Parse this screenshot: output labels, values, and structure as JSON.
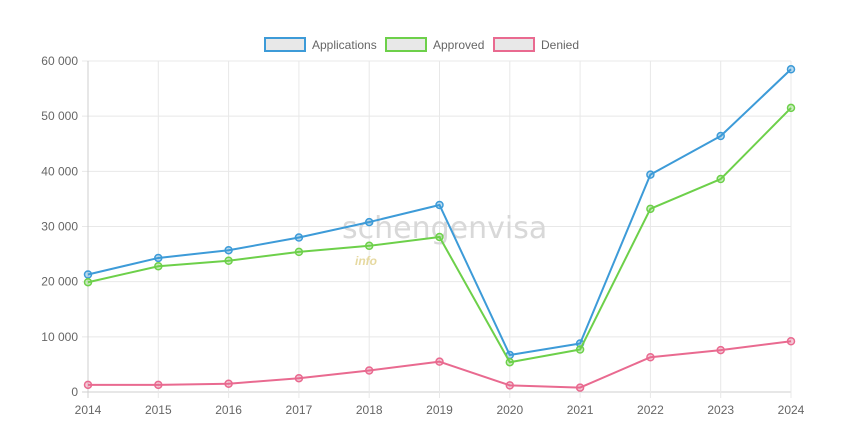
{
  "chart_data": {
    "type": "line",
    "categories": [
      "2014",
      "2015",
      "2016",
      "2017",
      "2018",
      "2019",
      "2020",
      "2021",
      "2022",
      "2023",
      "2024"
    ],
    "series": [
      {
        "name": "Applications",
        "color": "#3d9bd8",
        "values": [
          21300,
          24300,
          25700,
          28000,
          30800,
          33900,
          6700,
          8800,
          39400,
          46400,
          58500
        ]
      },
      {
        "name": "Approved",
        "color": "#6dd04a",
        "values": [
          19900,
          22800,
          23800,
          25400,
          26500,
          28100,
          5400,
          7700,
          33200,
          38600,
          51500
        ]
      },
      {
        "name": "Denied",
        "color": "#e96a90",
        "values": [
          1300,
          1300,
          1500,
          2500,
          3900,
          5500,
          1200,
          800,
          6300,
          7600,
          9200
        ]
      }
    ],
    "yticks": [
      0,
      10000,
      20000,
      30000,
      40000,
      50000,
      60000
    ],
    "ytick_labels": [
      "0",
      "10 000",
      "20 000",
      "30 000",
      "40 000",
      "50 000",
      "60 000"
    ],
    "ylim": [
      0,
      60000
    ],
    "grid": true,
    "legend_position": "top-center",
    "title": "",
    "xlabel": "",
    "ylabel": ""
  },
  "watermark": {
    "text": "schengenvisa",
    "sub": "info"
  }
}
